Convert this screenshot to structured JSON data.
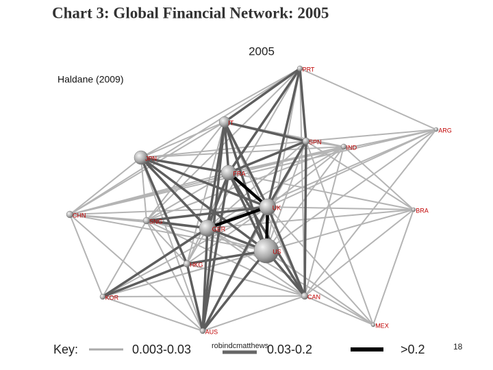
{
  "header": {
    "title": "Chart 3: Global Financial Network: 2005"
  },
  "figure": {
    "year": "2005",
    "source": "Haldane (2009)",
    "nodes": [
      {
        "label": "PRT"
      },
      {
        "label": "IT"
      },
      {
        "label": "SPN"
      },
      {
        "label": "IND"
      },
      {
        "label": "ARG"
      },
      {
        "label": "JPN"
      },
      {
        "label": "FRA"
      },
      {
        "label": "UK"
      },
      {
        "label": "BRA"
      },
      {
        "label": "CHN"
      },
      {
        "label": "SNG"
      },
      {
        "label": "GER"
      },
      {
        "label": "US"
      },
      {
        "label": "HKG"
      },
      {
        "label": "KOR"
      },
      {
        "label": "CAN"
      },
      {
        "label": "MEX"
      },
      {
        "label": "AUS"
      }
    ],
    "key": {
      "title": "Key:",
      "items": [
        "0.003-0.03",
        "0.03-0.2",
        ">0.2"
      ]
    }
  },
  "footer": {
    "author": "robindcmatthews",
    "page": "18"
  }
}
